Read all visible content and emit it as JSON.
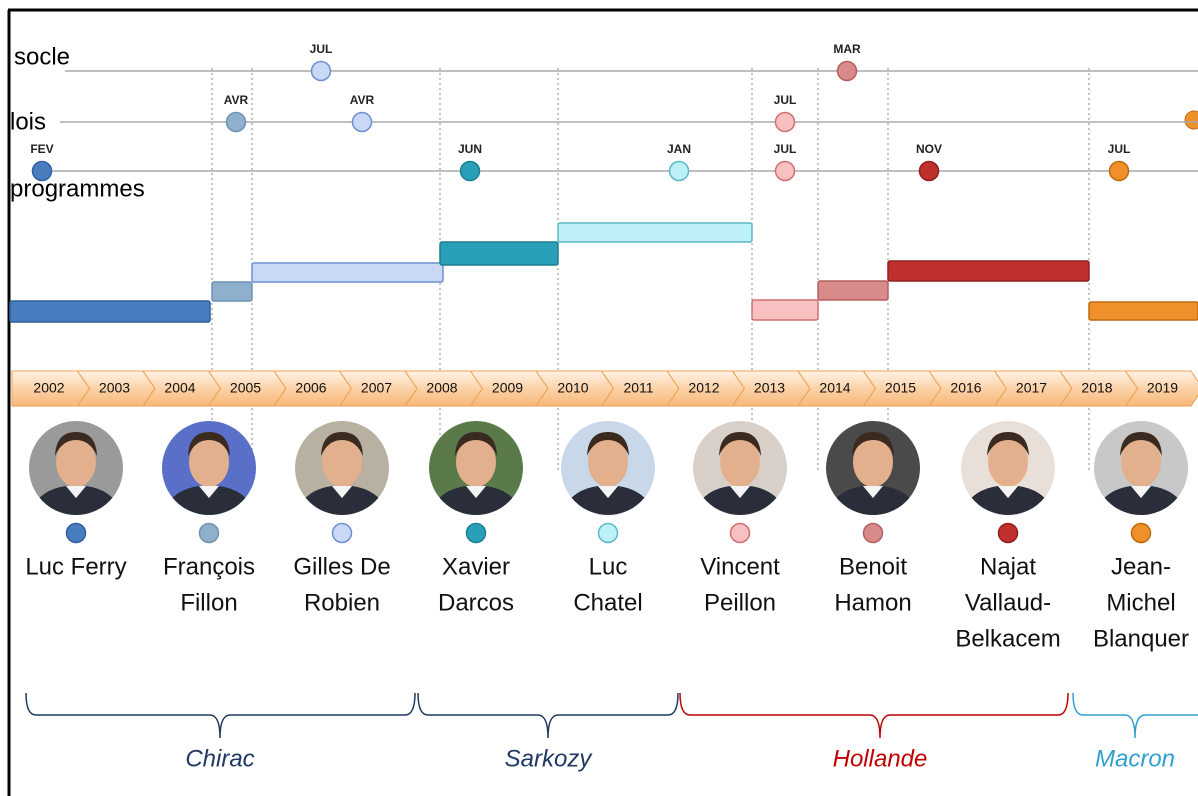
{
  "rows": [
    {
      "label": "socle",
      "events": [
        "JUL",
        "MAR"
      ]
    },
    {
      "label": "lois",
      "events": [
        "AVR",
        "AVR",
        "JUL"
      ]
    },
    {
      "label": "programmes",
      "events": [
        "FEV",
        "JUN",
        "JAN",
        "JUL",
        "NOV",
        "JUL"
      ]
    }
  ],
  "years": [
    2002,
    2003,
    2004,
    2005,
    2006,
    2007,
    2008,
    2009,
    2010,
    2011,
    2012,
    2013,
    2014,
    2015,
    2016,
    2017,
    2018,
    2019
  ],
  "ministers": [
    {
      "name": [
        "Luc Ferry"
      ]
    },
    {
      "name": [
        "François",
        "Fillon"
      ]
    },
    {
      "name": [
        "Gilles De",
        "Robien"
      ]
    },
    {
      "name": [
        "Xavier",
        "Darcos"
      ]
    },
    {
      "name": [
        "Luc",
        "Chatel"
      ]
    },
    {
      "name": [
        "Vincent",
        "Peillon"
      ]
    },
    {
      "name": [
        "Benoit",
        "Hamon"
      ]
    },
    {
      "name": [
        "Najat",
        "Vallaud-",
        "Belkacem"
      ]
    },
    {
      "name": [
        "Jean-",
        "Michel",
        "Blanquer"
      ]
    }
  ],
  "presidents": [
    "Chirac",
    "Sarkozy",
    "Hollande",
    "Macron"
  ]
}
